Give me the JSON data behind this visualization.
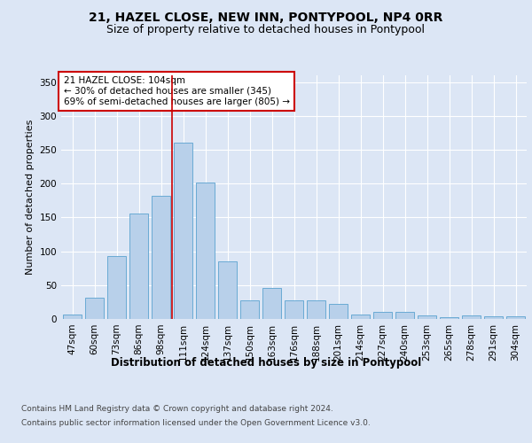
{
  "title1": "21, HAZEL CLOSE, NEW INN, PONTYPOOL, NP4 0RR",
  "title2": "Size of property relative to detached houses in Pontypool",
  "xlabel": "Distribution of detached houses by size in Pontypool",
  "ylabel": "Number of detached properties",
  "footnote1": "Contains HM Land Registry data © Crown copyright and database right 2024.",
  "footnote2": "Contains public sector information licensed under the Open Government Licence v3.0.",
  "annotation_line1": "21 HAZEL CLOSE: 104sqm",
  "annotation_line2": "← 30% of detached houses are smaller (345)",
  "annotation_line3": "69% of semi-detached houses are larger (805) →",
  "bar_labels": [
    "47sqm",
    "60sqm",
    "73sqm",
    "86sqm",
    "98sqm",
    "111sqm",
    "124sqm",
    "137sqm",
    "150sqm",
    "163sqm",
    "176sqm",
    "188sqm",
    "201sqm",
    "214sqm",
    "227sqm",
    "240sqm",
    "253sqm",
    "265sqm",
    "278sqm",
    "291sqm",
    "304sqm"
  ],
  "bar_values": [
    6,
    32,
    93,
    156,
    182,
    260,
    201,
    85,
    28,
    46,
    27,
    27,
    22,
    7,
    10,
    10,
    5,
    3,
    5,
    4,
    4
  ],
  "bar_color": "#b8d0ea",
  "bar_edge_color": "#6aaad4",
  "vline_x": 4.5,
  "vline_color": "#cc0000",
  "bg_color": "#dce6f5",
  "plot_bg_color": "#dce6f5",
  "ylim": [
    0,
    360
  ],
  "yticks": [
    0,
    50,
    100,
    150,
    200,
    250,
    300,
    350
  ],
  "annotation_box_color": "#cc0000",
  "grid_color": "#ffffff",
  "title1_fontsize": 10,
  "title2_fontsize": 9,
  "xlabel_fontsize": 8.5,
  "ylabel_fontsize": 8,
  "tick_fontsize": 7.5,
  "footnote_fontsize": 6.5,
  "annotation_fontsize": 7.5
}
